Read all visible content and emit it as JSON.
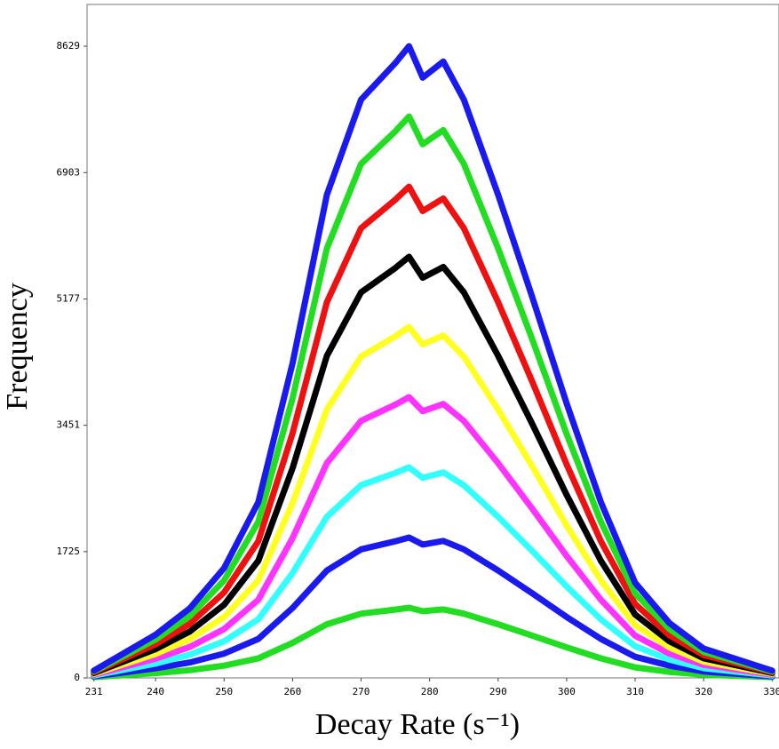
{
  "chart_data": {
    "type": "line",
    "x_label": "Decay Rate (s⁻¹)",
    "y_label": "Frequency",
    "x": [
      231,
      240,
      245,
      250,
      255,
      260,
      265,
      270,
      275,
      277,
      279,
      282,
      285,
      290,
      295,
      300,
      305,
      310,
      315,
      320,
      330
    ],
    "xlim": [
      230,
      331
    ],
    "ylim": [
      0,
      9200
    ],
    "xticks": [
      231,
      240,
      250,
      260,
      270,
      280,
      290,
      300,
      310,
      320,
      330
    ],
    "yticks": [
      0,
      1725,
      3451,
      5177,
      6903,
      8629
    ],
    "series": [
      {
        "color": "#22dd22",
        "values": [
          11,
          66,
          106,
          167,
          267,
          478,
          733,
          878,
          933,
          959,
          911,
          936,
          878,
          733,
          578,
          417,
          267,
          144,
          83,
          44,
          11
        ]
      },
      {
        "color": "#1a1aee",
        "values": [
          22,
          131,
          211,
          333,
          533,
          956,
          1467,
          1756,
          1867,
          1918,
          1822,
          1871,
          1756,
          1467,
          1156,
          833,
          533,
          289,
          167,
          89,
          22
        ]
      },
      {
        "color": "#33ffff",
        "values": [
          33,
          197,
          317,
          500,
          800,
          1433,
          2200,
          2633,
          2800,
          2876,
          2733,
          2807,
          2633,
          2200,
          1733,
          1250,
          800,
          433,
          250,
          133,
          33
        ]
      },
      {
        "color": "#ff33ff",
        "values": [
          44,
          262,
          422,
          667,
          1067,
          1911,
          2933,
          3511,
          3733,
          3835,
          3644,
          3742,
          3511,
          2933,
          2311,
          1667,
          1067,
          578,
          333,
          178,
          44
        ]
      },
      {
        "color": "#ffff22",
        "values": [
          56,
          328,
          528,
          833,
          1333,
          2389,
          3667,
          4389,
          4667,
          4794,
          4556,
          4678,
          4389,
          3667,
          2889,
          2083,
          1333,
          722,
          417,
          222,
          56
        ]
      },
      {
        "color": "#000000",
        "values": [
          67,
          393,
          633,
          1000,
          1600,
          2867,
          4400,
          5267,
          5600,
          5753,
          5467,
          5613,
          5267,
          4400,
          3467,
          2500,
          1600,
          867,
          500,
          267,
          67
        ]
      },
      {
        "color": "#ee1111",
        "values": [
          78,
          459,
          739,
          1167,
          1867,
          3344,
          5133,
          6144,
          6533,
          6711,
          6378,
          6549,
          6144,
          5133,
          4044,
          2917,
          1867,
          1011,
          583,
          311,
          78
        ]
      },
      {
        "color": "#22dd22",
        "values": [
          89,
          524,
          844,
          1333,
          2133,
          3822,
          5867,
          7022,
          7467,
          7670,
          7289,
          7484,
          7022,
          5867,
          4622,
          3333,
          2133,
          1156,
          667,
          356,
          89
        ]
      },
      {
        "color": "#1a1aee",
        "values": [
          100,
          590,
          950,
          1500,
          2400,
          4300,
          6600,
          7900,
          8400,
          8629,
          8200,
          8420,
          7900,
          6600,
          5200,
          3750,
          2400,
          1300,
          750,
          400,
          100
        ]
      }
    ]
  }
}
